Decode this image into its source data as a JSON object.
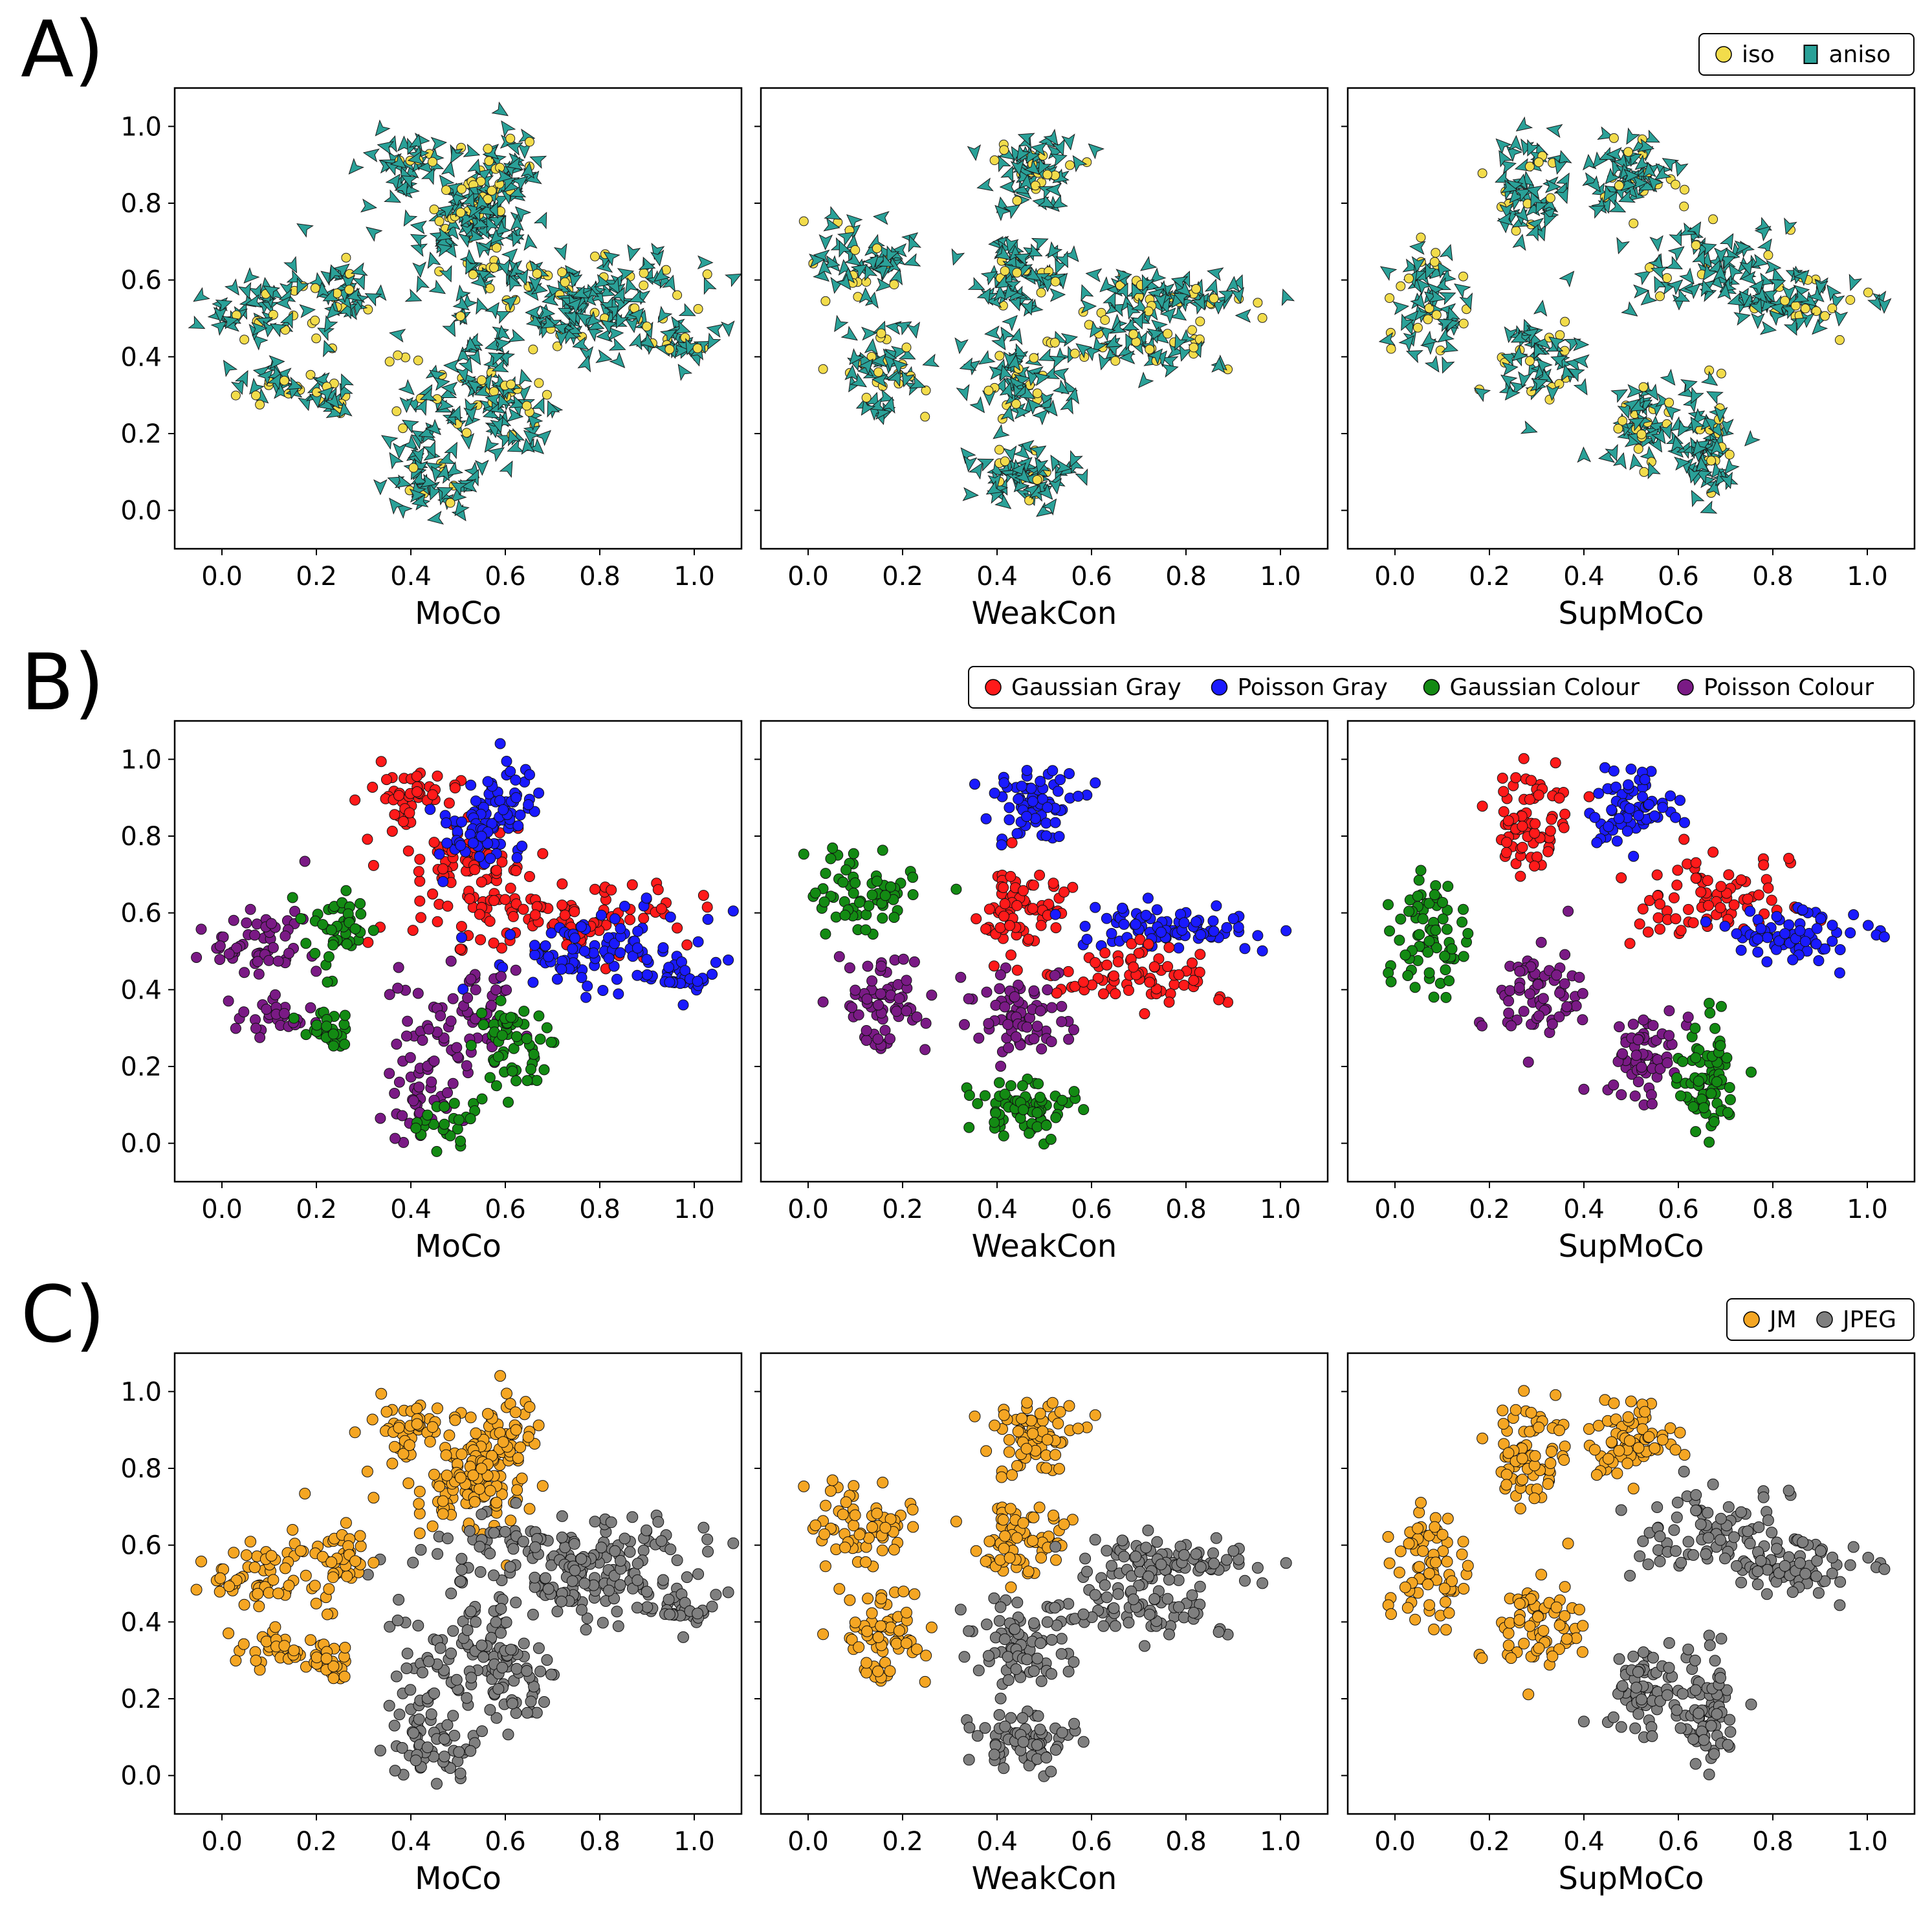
{
  "figure": {
    "rows": [
      {
        "row_label": "A)",
        "legend": [
          {
            "label": "iso",
            "color": "#f2dc4b",
            "marker": "circle"
          },
          {
            "label": "aniso",
            "color": "#2aa198",
            "marker": "arrow"
          }
        ]
      },
      {
        "row_label": "B)",
        "legend": [
          {
            "label": "Gaussian Gray",
            "color": "#ff1a1a",
            "marker": "circle"
          },
          {
            "label": "Poisson Gray",
            "color": "#1a1aff",
            "marker": "circle"
          },
          {
            "label": "Gaussian Colour",
            "color": "#138a13",
            "marker": "circle"
          },
          {
            "label": "Poisson Colour",
            "color": "#7a1a85",
            "marker": "circle"
          }
        ]
      },
      {
        "row_label": "C)",
        "legend": [
          {
            "label": "JM",
            "color": "#f5a623",
            "marker": "circle"
          },
          {
            "label": "JPEG",
            "color": "#7f7f7f",
            "marker": "circle"
          }
        ]
      }
    ],
    "panels": [
      "MoCo",
      "WeakCon",
      "SupMoCo"
    ]
  },
  "chart_data": [
    {
      "type": "scatter",
      "xlabel": "MoCo",
      "xlim": [
        -0.1,
        1.1
      ],
      "ylim": [
        -0.1,
        1.1
      ],
      "xticks": [
        "0.0",
        "0.2",
        "0.4",
        "0.6",
        "0.8",
        "1.0"
      ],
      "yticks": [
        "0.0",
        "0.2",
        "0.4",
        "0.6",
        "0.8",
        "1.0"
      ],
      "clusters": [
        {
          "x": 0.4,
          "y": 0.9,
          "sx": 0.05,
          "sy": 0.04,
          "n": 45,
          "a": "iso-aniso",
          "b": "Gaussian Gray",
          "c": "JM"
        },
        {
          "x": 0.5,
          "y": 0.74,
          "sx": 0.08,
          "sy": 0.06,
          "n": 70,
          "a": "iso-aniso",
          "b": "Gaussian Gray",
          "c": "JM"
        },
        {
          "x": 0.58,
          "y": 0.88,
          "sx": 0.04,
          "sy": 0.07,
          "n": 55,
          "a": "iso-aniso",
          "b": "Poisson Gray",
          "c": "JM"
        },
        {
          "x": 0.52,
          "y": 0.8,
          "sx": 0.05,
          "sy": 0.05,
          "n": 40,
          "a": "iso-aniso",
          "b": "Poisson Gray",
          "c": "JM"
        },
        {
          "x": 0.72,
          "y": 0.58,
          "sx": 0.15,
          "sy": 0.05,
          "n": 110,
          "a": "iso-aniso",
          "b": "Gaussian Gray",
          "c": "JPEG"
        },
        {
          "x": 0.8,
          "y": 0.5,
          "sx": 0.12,
          "sy": 0.05,
          "n": 100,
          "a": "iso-aniso",
          "b": "Poisson Gray",
          "c": "JPEG"
        },
        {
          "x": 0.97,
          "y": 0.43,
          "sx": 0.03,
          "sy": 0.02,
          "n": 25,
          "a": "iso-aniso",
          "b": "Poisson Gray",
          "c": "JPEG"
        },
        {
          "x": 0.08,
          "y": 0.52,
          "sx": 0.05,
          "sy": 0.05,
          "n": 55,
          "a": "iso-aniso",
          "b": "Poisson Colour",
          "c": "JM"
        },
        {
          "x": 0.24,
          "y": 0.56,
          "sx": 0.04,
          "sy": 0.05,
          "n": 45,
          "a": "iso-aniso",
          "b": "Gaussian Colour",
          "c": "JM"
        },
        {
          "x": 0.11,
          "y": 0.33,
          "sx": 0.04,
          "sy": 0.03,
          "n": 30,
          "a": "iso-aniso",
          "b": "Poisson Colour",
          "c": "JM"
        },
        {
          "x": 0.22,
          "y": 0.29,
          "sx": 0.03,
          "sy": 0.03,
          "n": 25,
          "a": "iso-aniso",
          "b": "Gaussian Colour",
          "c": "JM"
        },
        {
          "x": 0.5,
          "y": 0.32,
          "sx": 0.06,
          "sy": 0.06,
          "n": 70,
          "a": "iso-aniso",
          "b": "Poisson Colour",
          "c": "JPEG"
        },
        {
          "x": 0.62,
          "y": 0.26,
          "sx": 0.04,
          "sy": 0.07,
          "n": 55,
          "a": "iso-aniso",
          "b": "Gaussian Colour",
          "c": "JPEG"
        },
        {
          "x": 0.42,
          "y": 0.13,
          "sx": 0.04,
          "sy": 0.05,
          "n": 40,
          "a": "iso-aniso",
          "b": "Poisson Colour",
          "c": "JPEG"
        },
        {
          "x": 0.48,
          "y": 0.06,
          "sx": 0.04,
          "sy": 0.03,
          "n": 25,
          "a": "iso-aniso",
          "b": "Gaussian Colour",
          "c": "JPEG"
        }
      ]
    },
    {
      "type": "scatter",
      "xlabel": "WeakCon",
      "xlim": [
        -0.1,
        1.1
      ],
      "ylim": [
        -0.1,
        1.1
      ],
      "xticks": [
        "0.0",
        "0.2",
        "0.4",
        "0.6",
        "0.8",
        "1.0"
      ],
      "yticks": [
        "0.0",
        "0.2",
        "0.4",
        "0.6",
        "0.8",
        "1.0"
      ],
      "clusters": [
        {
          "x": 0.48,
          "y": 0.88,
          "sx": 0.05,
          "sy": 0.05,
          "n": 70,
          "a": "iso-aniso",
          "b": "Poisson Gray",
          "c": "JM"
        },
        {
          "x": 0.45,
          "y": 0.61,
          "sx": 0.05,
          "sy": 0.05,
          "n": 75,
          "a": "iso-aniso",
          "b": "Gaussian Gray",
          "c": "JM"
        },
        {
          "x": 0.78,
          "y": 0.56,
          "sx": 0.1,
          "sy": 0.03,
          "n": 85,
          "a": "iso-aniso",
          "b": "Poisson Gray",
          "c": "JPEG"
        },
        {
          "x": 0.7,
          "y": 0.43,
          "sx": 0.09,
          "sy": 0.04,
          "n": 75,
          "a": "iso-aniso",
          "b": "Gaussian Gray",
          "c": "JPEG"
        },
        {
          "x": 0.12,
          "y": 0.66,
          "sx": 0.06,
          "sy": 0.05,
          "n": 65,
          "a": "iso-aniso",
          "b": "Gaussian Colour",
          "c": "JM"
        },
        {
          "x": 0.16,
          "y": 0.36,
          "sx": 0.04,
          "sy": 0.06,
          "n": 65,
          "a": "iso-aniso",
          "b": "Poisson Colour",
          "c": "JM"
        },
        {
          "x": 0.45,
          "y": 0.33,
          "sx": 0.05,
          "sy": 0.06,
          "n": 70,
          "a": "iso-aniso",
          "b": "Poisson Colour",
          "c": "JPEG"
        },
        {
          "x": 0.46,
          "y": 0.09,
          "sx": 0.06,
          "sy": 0.04,
          "n": 75,
          "a": "iso-aniso",
          "b": "Gaussian Colour",
          "c": "JPEG"
        }
      ]
    },
    {
      "type": "scatter",
      "xlabel": "SupMoCo",
      "xlim": [
        -0.1,
        1.1
      ],
      "ylim": [
        -0.1,
        1.1
      ],
      "xticks": [
        "0.0",
        "0.2",
        "0.4",
        "0.6",
        "0.8",
        "1.0"
      ],
      "yticks": [
        "0.0",
        "0.2",
        "0.4",
        "0.6",
        "0.8",
        "1.0"
      ],
      "clusters": [
        {
          "x": 0.29,
          "y": 0.85,
          "sx": 0.04,
          "sy": 0.07,
          "n": 70,
          "a": "iso-aniso",
          "b": "Gaussian Gray",
          "c": "JM"
        },
        {
          "x": 0.5,
          "y": 0.87,
          "sx": 0.05,
          "sy": 0.05,
          "n": 70,
          "a": "iso-aniso",
          "b": "Poisson Gray",
          "c": "JM"
        },
        {
          "x": 0.66,
          "y": 0.63,
          "sx": 0.09,
          "sy": 0.06,
          "n": 80,
          "a": "iso-aniso",
          "b": "Gaussian Gray",
          "c": "JPEG"
        },
        {
          "x": 0.84,
          "y": 0.54,
          "sx": 0.07,
          "sy": 0.04,
          "n": 75,
          "a": "iso-aniso",
          "b": "Poisson Gray",
          "c": "JPEG"
        },
        {
          "x": 0.08,
          "y": 0.53,
          "sx": 0.04,
          "sy": 0.07,
          "n": 70,
          "a": "iso-aniso",
          "b": "Gaussian Colour",
          "c": "JM"
        },
        {
          "x": 0.3,
          "y": 0.4,
          "sx": 0.05,
          "sy": 0.06,
          "n": 65,
          "a": "iso-aniso",
          "b": "Poisson Colour",
          "c": "JM"
        },
        {
          "x": 0.52,
          "y": 0.21,
          "sx": 0.04,
          "sy": 0.06,
          "n": 65,
          "a": "iso-aniso",
          "b": "Poisson Colour",
          "c": "JPEG"
        },
        {
          "x": 0.66,
          "y": 0.18,
          "sx": 0.03,
          "sy": 0.08,
          "n": 75,
          "a": "iso-aniso",
          "b": "Gaussian Colour",
          "c": "JPEG"
        }
      ]
    }
  ]
}
